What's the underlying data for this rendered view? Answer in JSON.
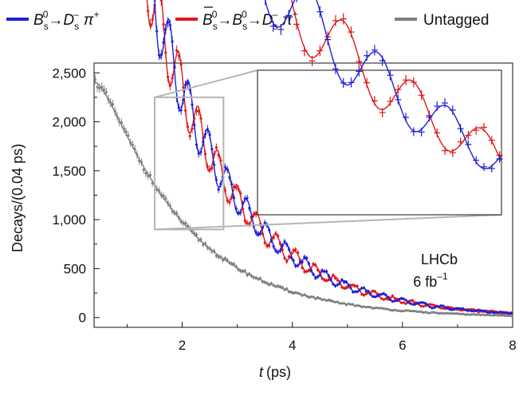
{
  "chart_data": {
    "type": "scatter",
    "xlabel_symbol": "t",
    "xlabel_unit": "(ps)",
    "ylabel": "Decays/(0.04 ps)",
    "xlim": [
      0.4,
      8
    ],
    "ylim": [
      -100,
      2600
    ],
    "x_ticks": [
      "2",
      "4",
      "6",
      "8"
    ],
    "y_ticks": [
      "0",
      "500",
      "1,000",
      "1,500",
      "2,000",
      "2,500"
    ],
    "annotation_line1": "LHCb",
    "annotation_line2": "6 fb",
    "annotation_sup": "–1",
    "legend": [
      {
        "key": "bs",
        "color": "#1f1fd6"
      },
      {
        "key": "bsbar",
        "color": "#e01818"
      },
      {
        "key": "untagged",
        "color": "#808080",
        "label": "Untagged"
      }
    ],
    "legend_text": {
      "bs": {
        "B": "B",
        "sub1": "s",
        "sup1": "0",
        "arrow": "→",
        "D": "D",
        "sub2": "s",
        "sup2": "–",
        "pi": "π",
        "sup3": "+"
      },
      "bsbar": {
        "B": "B",
        "sub1": "s",
        "sup1": "0",
        "arrow1": "→",
        "B2": "B",
        "sub1b": "s",
        "sup1b": "0",
        "arrow2": "→",
        "D": "D",
        "sub2": "s",
        "sup2": "–",
        "pi": "π",
        "sup3": "+"
      }
    },
    "model": {
      "tau_ps": 1.52,
      "delta_m_per_ps": 17.77,
      "amplitude": 0.12,
      "rise_factor_k": 2.55,
      "rise_scale_per_ps": 1.3,
      "bs_phase_rad": 0,
      "bsbar_phase_rad": 3.14159,
      "tagged_normalisation": 8700,
      "untagged_normalisation": 3650,
      "untagged_rise_factor_k": 3.3,
      "untagged_rise_scale_per_ps": 1.2,
      "bin_width_ps": 0.04
    },
    "inset_range": {
      "x": [
        1.5,
        2.75
      ],
      "y": [
        900,
        2250
      ]
    },
    "series": [
      {
        "key": "bs",
        "color": "#1f1fd6",
        "x_start": 0.42,
        "x_end": 8.0,
        "step": 0.04
      },
      {
        "key": "bsbar",
        "color": "#e01818",
        "x_start": 0.42,
        "x_end": 8.0,
        "step": 0.04
      },
      {
        "key": "untagged",
        "color": "#808080",
        "x_start": 0.42,
        "x_end": 8.0,
        "step": 0.04
      }
    ]
  }
}
